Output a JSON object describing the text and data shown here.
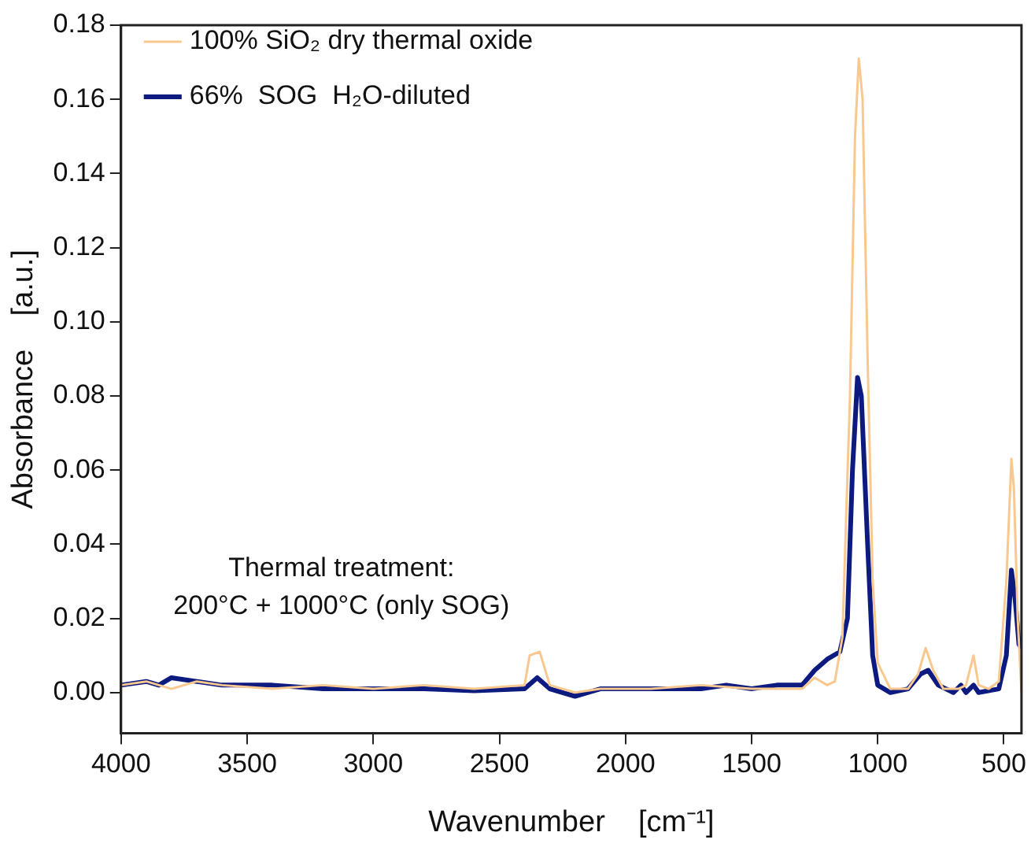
{
  "chart_data": {
    "type": "line",
    "xlabel": "Wavenumber    [cm⁻¹]",
    "ylabel": "Absorbance    [a.u.]",
    "xlim": [
      4000,
      430
    ],
    "xticks": [
      4000,
      3500,
      3000,
      2500,
      2000,
      1500,
      1000,
      500
    ],
    "ylim": [
      -0.011,
      0.18
    ],
    "yticks": [
      {
        "value": 0,
        "label": "0.00"
      },
      {
        "value": 0.02,
        "label": "0.02"
      },
      {
        "value": 0.04,
        "label": "0.04"
      },
      {
        "value": 0.06,
        "label": "0.06"
      },
      {
        "value": 0.08,
        "label": "0.08"
      },
      {
        "value": 0.1,
        "label": "0.10"
      },
      {
        "value": 0.12,
        "label": "0.12"
      },
      {
        "value": 0.14,
        "label": "0.14"
      },
      {
        "value": 0.16,
        "label": "0.16"
      },
      {
        "value": 0.18,
        "label": "0.18"
      }
    ],
    "grid": false,
    "legend": "top left",
    "marker": "none",
    "line_style": "solid",
    "annotations": [
      "Thermal treatment:",
      "200°C + 1000°C (only SOG)"
    ],
    "series": [
      {
        "name": "100% SiO₂ dry thermal oxide",
        "color": "#f8c88f",
        "x": [
          4000,
          3900,
          3800,
          3700,
          3600,
          3400,
          3200,
          3000,
          2800,
          2600,
          2400,
          2380,
          2340,
          2300,
          2200,
          2100,
          1900,
          1700,
          1500,
          1300,
          1250,
          1200,
          1170,
          1140,
          1110,
          1090,
          1075,
          1060,
          1040,
          1020,
          1000,
          950,
          880,
          840,
          810,
          780,
          740,
          680,
          650,
          620,
          600,
          560,
          520,
          490,
          470,
          460,
          445,
          430
        ],
        "values": [
          0.002,
          0.003,
          0.001,
          0.003,
          0.002,
          0.001,
          0.002,
          0.001,
          0.002,
          0.001,
          0.002,
          0.01,
          0.011,
          0.002,
          0.0,
          0.001,
          0.001,
          0.002,
          0.001,
          0.001,
          0.004,
          0.002,
          0.003,
          0.015,
          0.08,
          0.15,
          0.171,
          0.16,
          0.09,
          0.03,
          0.008,
          0.001,
          0.001,
          0.005,
          0.012,
          0.006,
          0.001,
          0.001,
          0.002,
          0.01,
          0.002,
          0.001,
          0.003,
          0.03,
          0.063,
          0.055,
          0.02,
          0.0
        ]
      },
      {
        "name": "66%  SOG  H₂O-diluted",
        "color": "#0d1a80",
        "x": [
          4000,
          3900,
          3850,
          3800,
          3700,
          3600,
          3400,
          3200,
          3000,
          2800,
          2600,
          2400,
          2350,
          2300,
          2200,
          2100,
          1900,
          1700,
          1600,
          1500,
          1400,
          1300,
          1250,
          1200,
          1150,
          1120,
          1100,
          1080,
          1065,
          1040,
          1020,
          1000,
          950,
          880,
          830,
          800,
          760,
          700,
          670,
          650,
          620,
          600,
          520,
          490,
          470,
          455,
          440,
          430
        ],
        "values": [
          0.002,
          0.003,
          0.002,
          0.004,
          0.003,
          0.002,
          0.002,
          0.001,
          0.001,
          0.001,
          0.0005,
          0.001,
          0.004,
          0.001,
          -0.001,
          0.001,
          0.001,
          0.001,
          0.002,
          0.001,
          0.002,
          0.002,
          0.006,
          0.009,
          0.011,
          0.02,
          0.06,
          0.085,
          0.08,
          0.04,
          0.01,
          0.002,
          0.0,
          0.001,
          0.005,
          0.006,
          0.002,
          0.0,
          0.002,
          0.0,
          0.002,
          0.0,
          0.001,
          0.01,
          0.033,
          0.025,
          0.013,
          0.012
        ]
      }
    ]
  }
}
